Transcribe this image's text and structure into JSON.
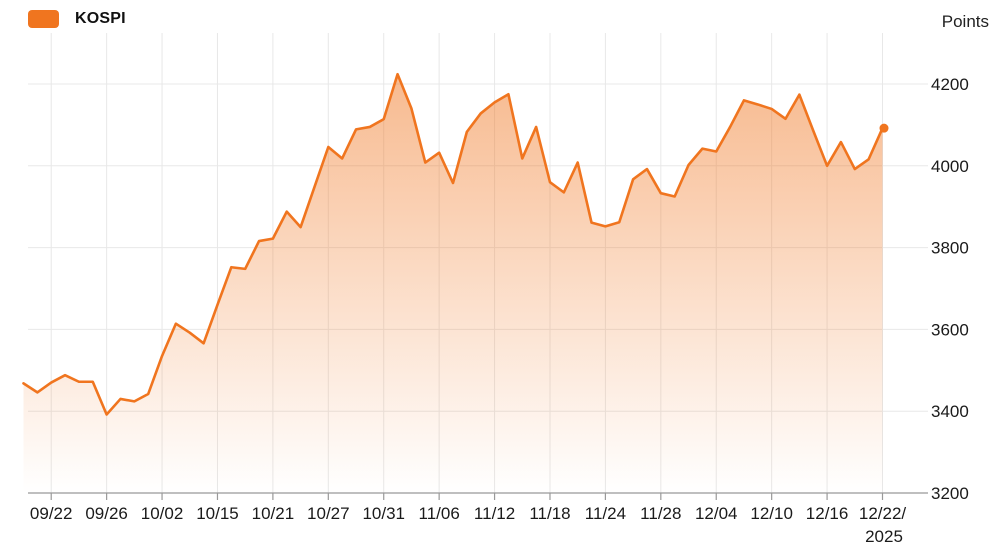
{
  "legend": {
    "label": "KOSPI",
    "color": "#f0751f"
  },
  "y_axis_unit": "Points",
  "colors": {
    "line": "#f0751f",
    "fill_top_opacity": 0.5,
    "fill_bottom_opacity": 0,
    "gridline": "#e8e8e8",
    "axis_line": "#999999",
    "tick_text": "#1a1a1a"
  },
  "chart_data": {
    "type": "area",
    "title": "",
    "xlabel": "",
    "ylabel": "Points",
    "grid": true,
    "legend_position": "top-left",
    "y_axis": {
      "min": 3200,
      "max": 4200,
      "tick_step": 200
    },
    "y_ticks": [
      3200,
      3400,
      3600,
      3800,
      4000,
      4200
    ],
    "series": [
      {
        "name": "KOSPI",
        "color": "#f0751f",
        "values": [
          3468,
          3446,
          3470,
          3488,
          3472,
          3472,
          3392,
          3430,
          3424,
          3442,
          3535,
          3614,
          3592,
          3566,
          3660,
          3752,
          3748,
          3816,
          3822,
          3888,
          3850,
          3948,
          4046,
          4018,
          4089,
          4095,
          4114,
          4224,
          4140,
          4008,
          4032,
          3958,
          4083,
          4128,
          4155,
          4175,
          4018,
          4095,
          3960,
          3935,
          4008,
          3861,
          3852,
          3862,
          3967,
          3992,
          3933,
          3925,
          4002,
          4042,
          4035,
          4095,
          4160,
          4150,
          4139,
          4115,
          4174,
          4086,
          4000,
          4058,
          3992,
          4016,
          4092
        ],
        "last_point_marker": true
      }
    ],
    "x_ticks": [
      {
        "index": 2,
        "lines": [
          "09/22"
        ]
      },
      {
        "index": 6,
        "lines": [
          "09/26"
        ]
      },
      {
        "index": 10,
        "lines": [
          "10/02"
        ]
      },
      {
        "index": 14,
        "lines": [
          "10/15"
        ]
      },
      {
        "index": 18,
        "lines": [
          "10/21"
        ]
      },
      {
        "index": 22,
        "lines": [
          "10/27"
        ]
      },
      {
        "index": 26,
        "lines": [
          "10/31"
        ]
      },
      {
        "index": 30,
        "lines": [
          "11/06"
        ]
      },
      {
        "index": 34,
        "lines": [
          "11/12"
        ]
      },
      {
        "index": 38,
        "lines": [
          "11/18"
        ]
      },
      {
        "index": 42,
        "lines": [
          "11/24"
        ]
      },
      {
        "index": 46,
        "lines": [
          "11/28"
        ]
      },
      {
        "index": 50,
        "lines": [
          "12/04"
        ]
      },
      {
        "index": 54,
        "lines": [
          "12/10"
        ]
      },
      {
        "index": 58,
        "lines": [
          "12/16"
        ]
      },
      {
        "index": 62,
        "lines": [
          "12/22/",
          "2025"
        ]
      }
    ]
  }
}
